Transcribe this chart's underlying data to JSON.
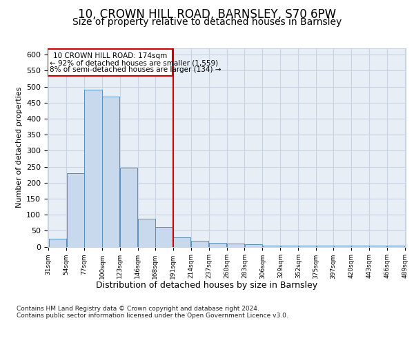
{
  "title": "10, CROWN HILL ROAD, BARNSLEY, S70 6PW",
  "subtitle": "Size of property relative to detached houses in Barnsley",
  "dist_label": "Distribution of detached houses by size in Barnsley",
  "ylabel": "Number of detached properties",
  "footnote1": "Contains HM Land Registry data © Crown copyright and database right 2024.",
  "footnote2": "Contains public sector information licensed under the Open Government Licence v3.0.",
  "property_label": "10 CROWN HILL ROAD: 174sqm",
  "annotation_line1": "← 92% of detached houses are smaller (1,559)",
  "annotation_line2": "8% of semi-detached houses are larger (134) →",
  "bar_left_edges": [
    31,
    54,
    77,
    100,
    123,
    146,
    168,
    191,
    214,
    237,
    260,
    283,
    306,
    329,
    352,
    375,
    397,
    420,
    443,
    466
  ],
  "bar_widths": [
    23,
    23,
    23,
    23,
    23,
    23,
    23,
    23,
    23,
    23,
    23,
    23,
    23,
    23,
    23,
    23,
    23,
    23,
    23,
    23
  ],
  "bar_heights": [
    25,
    230,
    490,
    470,
    247,
    87,
    62,
    30,
    18,
    12,
    10,
    8,
    4,
    4,
    3,
    3,
    3,
    4,
    3,
    3
  ],
  "bar_color": "#c9d9ed",
  "bar_edge_color": "#5b8db8",
  "vline_color": "#cc0000",
  "annotation_box_color": "#cc0000",
  "ylim": [
    0,
    620
  ],
  "yticks": [
    0,
    50,
    100,
    150,
    200,
    250,
    300,
    350,
    400,
    450,
    500,
    550,
    600
  ],
  "xtick_labels": [
    "31sqm",
    "54sqm",
    "77sqm",
    "100sqm",
    "123sqm",
    "146sqm",
    "168sqm",
    "191sqm",
    "214sqm",
    "237sqm",
    "260sqm",
    "283sqm",
    "306sqm",
    "329sqm",
    "352sqm",
    "375sqm",
    "397sqm",
    "420sqm",
    "443sqm",
    "466sqm",
    "489sqm"
  ],
  "grid_color": "#c8d4e4",
  "bg_color": "#e8eef6",
  "fig_bg_color": "#ffffff",
  "title_fontsize": 12,
  "subtitle_fontsize": 10
}
